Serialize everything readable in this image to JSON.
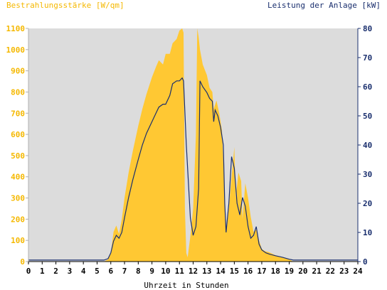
{
  "chart_data": {
    "type": "area",
    "ylabel_left": "Bestrahlungsstärke [W/qm]",
    "ylabel_right": "Leistung der Anlage [kW]",
    "xlabel": "Uhrzeit in Stunden",
    "xlim": [
      0,
      24
    ],
    "ylim_left": [
      0,
      1100
    ],
    "ylim_right": [
      0,
      80
    ],
    "x_ticks": [
      "0",
      "1",
      "2",
      "3",
      "4",
      "5",
      "6",
      "7",
      "8",
      "9",
      "10",
      "11",
      "12",
      "13",
      "14",
      "15",
      "16",
      "17",
      "18",
      "19",
      "20",
      "21",
      "22",
      "23",
      "24"
    ],
    "y_ticks_left": [
      "0",
      "100",
      "200",
      "300",
      "400",
      "500",
      "600",
      "700",
      "800",
      "900",
      "1000",
      "1100"
    ],
    "y_ticks_right": [
      "0",
      "10",
      "20",
      "30",
      "40",
      "50",
      "60",
      "70",
      "80"
    ],
    "grid": false,
    "colors": {
      "irradiance": "#ffc833",
      "power": "#1a2f6e",
      "plot_bg": "#dcdcdc"
    },
    "series": [
      {
        "name": "Bestrahlungsstärke [W/qm]",
        "axis": "left",
        "x": [
          0,
          5.5,
          5.8,
          6.0,
          6.2,
          6.4,
          6.6,
          6.8,
          7.0,
          7.3,
          7.6,
          8.0,
          8.3,
          8.6,
          9.0,
          9.3,
          9.5,
          9.8,
          10.0,
          10.3,
          10.5,
          10.8,
          11.0,
          11.2,
          11.3,
          11.4,
          11.5,
          11.6,
          11.8,
          12.0,
          12.2,
          12.3,
          12.4,
          12.5,
          12.7,
          13.0,
          13.2,
          13.4,
          13.5,
          13.7,
          13.9,
          14.1,
          14.3,
          14.4,
          14.6,
          14.8,
          15.0,
          15.1,
          15.3,
          15.5,
          15.6,
          15.8,
          16.0,
          16.2,
          16.4,
          16.6,
          16.8,
          17.0,
          17.2,
          17.5,
          18.0,
          18.5,
          19.0,
          19.3,
          24
        ],
        "y": [
          0,
          0,
          10,
          40,
          140,
          170,
          130,
          200,
          300,
          420,
          520,
          640,
          720,
          790,
          870,
          920,
          950,
          930,
          980,
          980,
          1030,
          1050,
          1090,
          1100,
          1080,
          250,
          40,
          20,
          120,
          250,
          600,
          1100,
          1060,
          1000,
          930,
          880,
          820,
          800,
          720,
          760,
          700,
          620,
          300,
          150,
          250,
          400,
          540,
          300,
          420,
          380,
          200,
          370,
          300,
          210,
          140,
          150,
          100,
          60,
          50,
          45,
          30,
          20,
          10,
          0,
          0
        ]
      },
      {
        "name": "Leistung der Anlage [kW]",
        "axis": "right",
        "x": [
          0,
          5.5,
          5.8,
          6.0,
          6.2,
          6.4,
          6.6,
          6.8,
          7.0,
          7.3,
          7.6,
          8.0,
          8.3,
          8.6,
          9.0,
          9.3,
          9.5,
          9.8,
          10.0,
          10.3,
          10.5,
          10.8,
          11.0,
          11.2,
          11.3,
          11.5,
          11.8,
          12.0,
          12.2,
          12.4,
          12.5,
          12.7,
          13.0,
          13.2,
          13.4,
          13.5,
          13.6,
          13.8,
          14.0,
          14.2,
          14.3,
          14.4,
          14.6,
          14.8,
          15.0,
          15.2,
          15.4,
          15.6,
          15.8,
          16.0,
          16.2,
          16.4,
          16.6,
          16.8,
          17.0,
          17.3,
          17.6,
          18.0,
          18.5,
          19.0,
          19.3,
          24
        ],
        "y": [
          0.5,
          0.5,
          1,
          3,
          7,
          9,
          8,
          10,
          15,
          22,
          28,
          35,
          40,
          44,
          48,
          51,
          53,
          54,
          54,
          57,
          61,
          62,
          62,
          63,
          62,
          40,
          15,
          9,
          12,
          25,
          62,
          60,
          58,
          56,
          55,
          48,
          52,
          50,
          46,
          40,
          20,
          10,
          20,
          36,
          32,
          20,
          16,
          22,
          19,
          12,
          8,
          9,
          12,
          6,
          4,
          3,
          2.5,
          2,
          1.5,
          0.8,
          0.5,
          0.5
        ]
      }
    ]
  }
}
